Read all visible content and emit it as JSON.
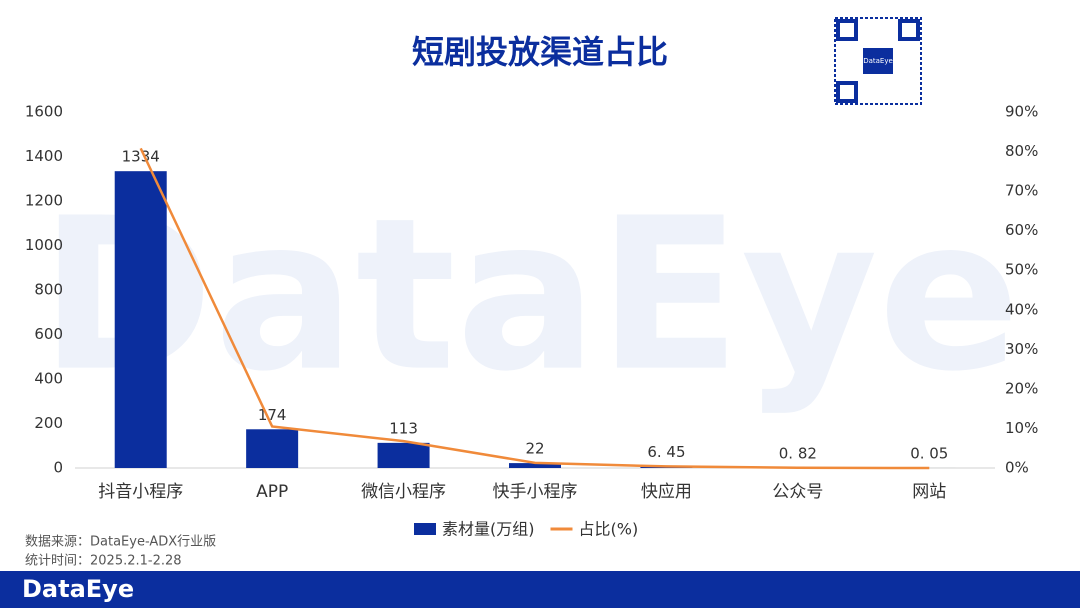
{
  "chart_data": {
    "type": "combo",
    "title": "短剧投放渠道占比",
    "categories": [
      "抖音小程序",
      "APP",
      "微信小程序",
      "快手小程序",
      "快应用",
      "公众号",
      "网站"
    ],
    "series": [
      {
        "name": "素材量(万组)",
        "type": "bar",
        "color": "#0b2e9e",
        "values": [
          1334,
          174,
          113,
          22,
          6.45,
          0.82,
          0.05
        ],
        "value_labels": [
          "1334",
          "174",
          "113",
          "22",
          "6. 45",
          "0. 82",
          "0. 05"
        ]
      },
      {
        "name": "占比(%)",
        "type": "line",
        "axis": "y2",
        "color": "#f08a3a",
        "values": [
          80.8,
          10.5,
          6.8,
          1.3,
          0.4,
          0.05,
          0
        ]
      }
    ],
    "ylim": [
      0,
      1600
    ],
    "yticks": [
      0,
      200,
      400,
      600,
      800,
      1000,
      1200,
      1400,
      1600
    ],
    "y2lim": [
      0,
      90
    ],
    "y2ticks": [
      {
        "value": 0,
        "label": "0%"
      },
      {
        "value": 10,
        "label": "10%"
      },
      {
        "value": 20,
        "label": "20%"
      },
      {
        "value": 30,
        "label": "30%"
      },
      {
        "value": 40,
        "label": "40%"
      },
      {
        "value": 50,
        "label": "50%"
      },
      {
        "value": 60,
        "label": "60%"
      },
      {
        "value": 70,
        "label": "70%"
      },
      {
        "value": 80,
        "label": "80%"
      },
      {
        "value": 90,
        "label": "90%"
      }
    ],
    "grid": false,
    "legend": "bottom"
  },
  "source": "数据来源：DataEye-ADX行业版",
  "period": "统计时间：2025.2.1-2.28",
  "watermark": "DataEye",
  "footer_logo": "DataEye",
  "qr_label": "DataEye"
}
